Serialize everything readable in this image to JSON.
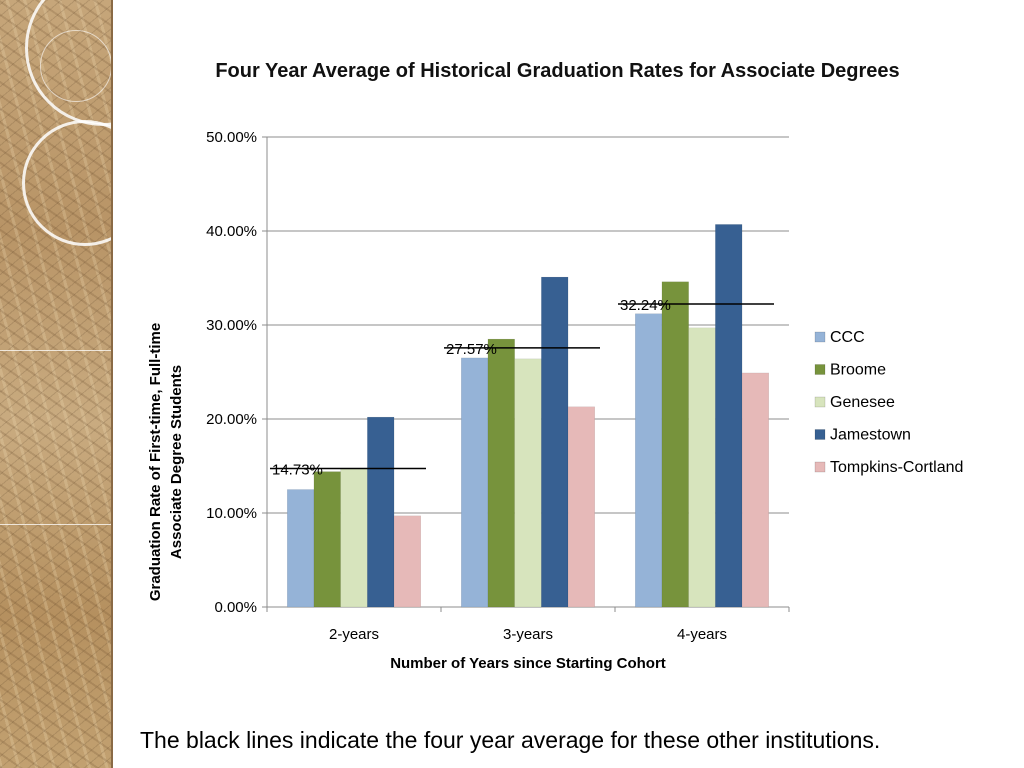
{
  "slide": {
    "caption": "The black lines indicate the four year average for these other institutions."
  },
  "chart_data": {
    "type": "bar",
    "title": "Four Year Average of Historical Graduation Rates for Associate Degrees",
    "xlabel": "Number of Years since Starting Cohort",
    "ylabel": "Graduation Rate of First-time, Full-time Associate Degree Students",
    "categories": [
      "2-years",
      "3-years",
      "4-years"
    ],
    "ylim": [
      0,
      50
    ],
    "yticks": [
      "0.00%",
      "10.00%",
      "20.00%",
      "30.00%",
      "40.00%",
      "50.00%"
    ],
    "grid": true,
    "legend": "right",
    "series": [
      {
        "name": "CCC",
        "color": "#95b3d7",
        "values": [
          12.5,
          26.5,
          31.2
        ]
      },
      {
        "name": "Broome",
        "color": "#77933c",
        "values": [
          14.4,
          28.5,
          34.6
        ]
      },
      {
        "name": "Genesee",
        "color": "#d7e4bd",
        "values": [
          14.7,
          26.4,
          29.7
        ]
      },
      {
        "name": "Jamestown",
        "color": "#376092",
        "values": [
          20.2,
          35.1,
          40.7
        ]
      },
      {
        "name": "Tompkins-Cortland",
        "color": "#e6b9b8",
        "values": [
          9.7,
          21.3,
          24.9
        ]
      }
    ],
    "averages": [
      {
        "category": "2-years",
        "value": 14.73,
        "label": "14.73%"
      },
      {
        "category": "3-years",
        "value": 27.57,
        "label": "27.57%"
      },
      {
        "category": "4-years",
        "value": 32.24,
        "label": "32.24%"
      }
    ]
  }
}
